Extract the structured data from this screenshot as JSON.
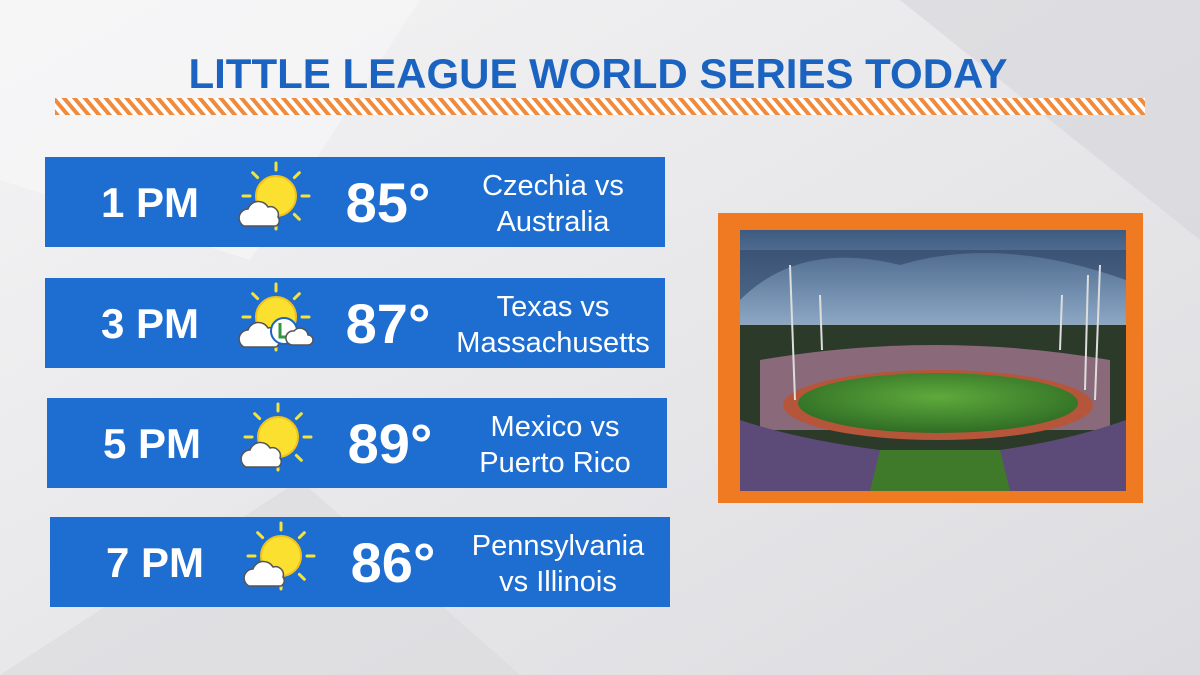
{
  "header": {
    "title": "LITTLE LEAGUE WORLD SERIES TODAY"
  },
  "games": [
    {
      "time": "1 PM",
      "temp": "85°",
      "matchup": [
        "Czechia vs",
        "Australia"
      ]
    },
    {
      "time": "3 PM",
      "temp": "87°",
      "matchup": [
        "Texas vs",
        "Massachusetts"
      ]
    },
    {
      "time": "5 PM",
      "temp": "89°",
      "matchup": [
        "Mexico vs",
        "Puerto Rico"
      ]
    },
    {
      "time": "7 PM",
      "temp": "86°",
      "matchup": [
        "Pennsylvania",
        "vs Illinois"
      ]
    }
  ]
}
